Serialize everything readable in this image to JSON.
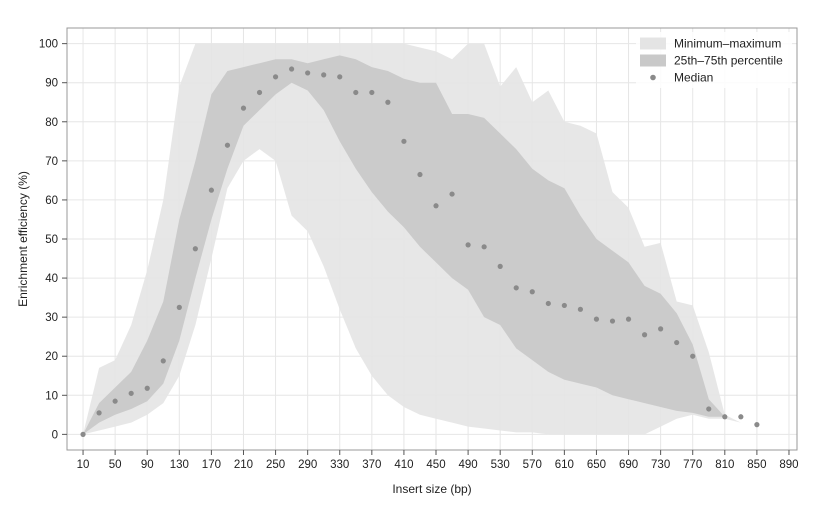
{
  "chart_data": {
    "type": "area",
    "title": "",
    "xlabel": "Insert size (bp)",
    "ylabel": "Enrichment efficiency (%)",
    "xlim": [
      -10,
      900
    ],
    "ylim": [
      -4,
      104
    ],
    "x_ticks": [
      10,
      50,
      90,
      130,
      170,
      210,
      250,
      290,
      330,
      370,
      410,
      450,
      490,
      530,
      570,
      610,
      650,
      690,
      730,
      770,
      810,
      850,
      890
    ],
    "y_ticks": [
      0,
      10,
      20,
      30,
      40,
      50,
      60,
      70,
      80,
      90,
      100
    ],
    "grid": true,
    "legend_position": "top-right",
    "legend": [
      {
        "label": "Minimum–maximum",
        "kind": "band",
        "color": "#e4e4e4"
      },
      {
        "label": "25th–75th percentile",
        "kind": "band",
        "color": "#c9c9c9"
      },
      {
        "label": "Median",
        "kind": "point",
        "color": "#8a8a8a"
      }
    ],
    "colors": {
      "minmax": "#e4e4e4",
      "iqr": "#c9c9c9",
      "median": "#8a8a8a",
      "grid": "#e6e6e6",
      "axis": "#999999"
    },
    "median": {
      "x": [
        10,
        30,
        50,
        70,
        90,
        110,
        130,
        150,
        170,
        190,
        210,
        230,
        250,
        270,
        290,
        310,
        330,
        350,
        370,
        390,
        410,
        430,
        450,
        470,
        490,
        510,
        530,
        550,
        570,
        590,
        610,
        630,
        650,
        670,
        690,
        710,
        730,
        750,
        770,
        790,
        810,
        830,
        850
      ],
      "y": [
        0,
        5.5,
        8.5,
        10.5,
        11.8,
        18.8,
        32.5,
        47.5,
        62.5,
        74,
        83.5,
        87.5,
        91.5,
        93.5,
        92.5,
        92,
        91.5,
        87.5,
        87.5,
        85,
        75,
        66.5,
        58.5,
        61.5,
        48.5,
        48,
        43,
        37.5,
        36.5,
        33.5,
        33,
        32,
        29.5,
        29,
        29.5,
        25.5,
        27,
        23.5,
        20,
        6.5,
        4.5,
        4.5,
        2.5
      ]
    },
    "iqr_band": {
      "x": [
        10,
        30,
        50,
        70,
        90,
        110,
        130,
        150,
        170,
        190,
        210,
        230,
        250,
        270,
        290,
        310,
        330,
        350,
        370,
        390,
        410,
        430,
        450,
        470,
        490,
        510,
        530,
        550,
        570,
        590,
        610,
        630,
        650,
        670,
        690,
        710,
        730,
        750,
        770,
        790,
        810
      ],
      "lower": [
        0,
        3,
        5,
        6.5,
        8.5,
        13,
        24,
        40,
        55,
        68,
        79,
        83,
        87,
        90,
        88,
        83,
        75,
        68,
        62,
        57,
        53,
        48,
        44,
        40,
        37,
        30,
        28,
        22,
        19,
        16,
        14,
        13,
        12,
        10,
        9,
        8,
        7,
        6,
        5.5,
        4.5,
        4.5
      ],
      "upper": [
        0,
        8,
        12,
        16,
        24,
        34,
        55,
        70,
        87,
        93,
        94,
        95,
        96,
        96,
        95,
        96,
        97,
        96,
        94,
        93,
        91,
        90,
        90,
        82,
        82,
        81,
        77,
        73,
        68,
        65,
        63,
        56,
        50,
        47,
        44,
        38,
        36,
        31,
        23,
        9,
        4.5
      ]
    },
    "minmax_band": {
      "x": [
        10,
        30,
        50,
        70,
        90,
        110,
        130,
        150,
        170,
        190,
        210,
        230,
        250,
        270,
        290,
        310,
        330,
        350,
        370,
        390,
        410,
        430,
        450,
        470,
        490,
        510,
        530,
        550,
        570,
        590,
        610,
        630,
        650,
        670,
        690,
        710,
        730,
        750,
        770,
        790,
        810,
        830,
        850
      ],
      "lower": [
        0,
        1,
        2,
        3,
        5,
        8,
        15,
        28,
        45,
        63,
        70,
        73,
        70,
        56,
        52,
        43,
        32,
        22,
        15,
        10,
        7,
        5,
        4,
        3,
        2,
        1.5,
        1,
        0.5,
        0.5,
        0,
        0,
        0,
        0,
        0,
        0,
        0,
        2,
        4,
        5,
        4,
        4,
        3,
        2.5
      ],
      "upper": [
        0,
        17,
        19,
        28,
        42,
        60,
        89,
        100,
        100,
        100,
        100,
        100,
        100,
        100,
        100,
        100,
        100,
        100,
        100,
        100,
        100,
        99,
        98,
        96,
        100,
        100,
        89,
        94,
        85,
        88,
        80,
        79,
        77,
        62,
        58,
        48,
        49,
        34,
        33,
        21,
        5,
        3,
        2.5
      ]
    }
  }
}
